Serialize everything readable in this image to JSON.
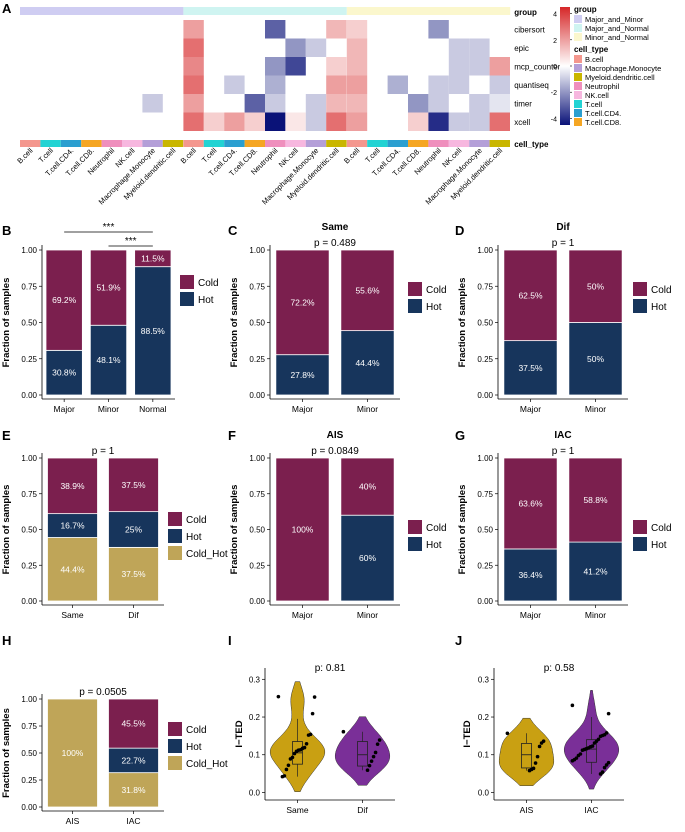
{
  "colors": {
    "cold": "#7b1f4e",
    "hot": "#17355c",
    "cold_hot": "#bfa558",
    "violin_gold": "#c9a012",
    "violin_purple": "#7a2f98",
    "group_major_minor": "#cfcdf2",
    "group_major_normal": "#cff4f1",
    "group_minor_normal": "#fbf7cd",
    "celltype_b": "#f4978e",
    "celltype_macro": "#b49fd8",
    "celltype_myeloid": "#c9b600",
    "celltype_neutro": "#ef8fbd",
    "celltype_nk": "#f7b7df",
    "celltype_t": "#22d3d3",
    "celltype_cd4": "#2b9fd0",
    "celltype_cd8": "#f5a623"
  },
  "chart_data": [
    {
      "panel": "A",
      "type": "heatmap",
      "rows": [
        "cibersort",
        "epic",
        "mcp_counter",
        "quantiseq",
        "timer",
        "xcell"
      ],
      "row_header": "group",
      "footer_label": "cell_type",
      "column_labels": [
        "B.cell",
        "T.cell",
        "T.cell.CD4.",
        "T.cell.CD8.",
        "Neutrophil",
        "NK.cell",
        "Macrophage.Monocyte",
        "Myeloid.dendritic.cell"
      ],
      "blocks": [
        {
          "group": "Major_and_Minor",
          "values": [
            [
              null,
              null,
              null,
              null,
              null,
              null,
              null,
              null
            ],
            [
              null,
              null,
              null,
              null,
              null,
              null,
              null,
              null
            ],
            [
              null,
              null,
              null,
              null,
              null,
              null,
              null,
              null
            ],
            [
              null,
              null,
              null,
              null,
              null,
              null,
              null,
              null
            ],
            [
              null,
              null,
              null,
              null,
              null,
              null,
              -1,
              null
            ],
            [
              null,
              null,
              null,
              null,
              null,
              null,
              null,
              null
            ]
          ]
        },
        {
          "group": "Major_and_Normal",
          "values": [
            [
              2,
              null,
              null,
              null,
              -3,
              null,
              null,
              1.5
            ],
            [
              3,
              null,
              null,
              null,
              null,
              -2,
              -1,
              null
            ],
            [
              2.5,
              null,
              null,
              null,
              -2,
              -3.5,
              null,
              1
            ],
            [
              3,
              null,
              -1,
              null,
              -1.5,
              null,
              null,
              2
            ],
            [
              2,
              null,
              null,
              -3,
              -1,
              null,
              -1,
              1.5
            ],
            [
              3,
              1,
              2,
              1,
              -4.5,
              0.5,
              -1,
              3
            ]
          ]
        },
        {
          "group": "Minor_and_Normal",
          "values": [
            [
              1,
              null,
              null,
              null,
              -2,
              null,
              null,
              null
            ],
            [
              1.5,
              null,
              null,
              null,
              null,
              -1,
              -1,
              null
            ],
            [
              1.5,
              null,
              null,
              null,
              null,
              -1,
              -1,
              2
            ],
            [
              2,
              null,
              -1.5,
              null,
              -1,
              -1,
              null,
              -1
            ],
            [
              1.5,
              null,
              null,
              -2,
              -1,
              null,
              -1,
              -0.5
            ],
            [
              2,
              null,
              null,
              1,
              -4,
              -1,
              -1,
              3
            ]
          ]
        }
      ],
      "colorbar": {
        "ticks": [
          4,
          2,
          0,
          -2,
          -4
        ],
        "range": [
          -4.5,
          4.5
        ]
      },
      "legend": {
        "group_title": "group",
        "groups": [
          "Major_and_Minor",
          "Major_and_Normal",
          "Minor_and_Normal"
        ],
        "celltype_title": "cell_type",
        "cell_types": [
          "B.cell",
          "Macrophage.Monocyte",
          "Myeloid.dendritic.cell",
          "Neutrophil",
          "NK.cell",
          "T.cell",
          "T.cell.CD4.",
          "T.cell.CD8."
        ]
      }
    },
    {
      "panel": "B",
      "type": "bar",
      "title": "",
      "ptext": "",
      "ylabel": "Fraction of samples",
      "ylim": [
        0,
        1
      ],
      "yticks": [
        "0.00",
        "0.25",
        "0.50",
        "0.75",
        "1.00"
      ],
      "categories": [
        "Major",
        "Minor",
        "Normal"
      ],
      "series": [
        {
          "name": "Hot",
          "values": [
            0.308,
            0.481,
            0.885
          ],
          "labels": [
            "30.8%",
            "48.1%",
            "88.5%"
          ]
        },
        {
          "name": "Cold",
          "values": [
            0.692,
            0.519,
            0.115
          ],
          "labels": [
            "69.2%",
            "51.9%",
            "11.5%"
          ]
        }
      ],
      "legend": [
        "Cold",
        "Hot"
      ],
      "significance": [
        {
          "from": 0,
          "to": 2,
          "label": "***"
        },
        {
          "from": 1,
          "to": 2,
          "label": "***"
        }
      ]
    },
    {
      "panel": "C",
      "type": "bar",
      "title": "Same",
      "ptext": "p = 0.489",
      "ylabel": "Fraction of samples",
      "ylim": [
        0,
        1
      ],
      "yticks": [
        "0.00",
        "0.25",
        "0.50",
        "0.75",
        "1.00"
      ],
      "categories": [
        "Major",
        "Minor"
      ],
      "series": [
        {
          "name": "Hot",
          "values": [
            0.278,
            0.444
          ],
          "labels": [
            "27.8%",
            "44.4%"
          ]
        },
        {
          "name": "Cold",
          "values": [
            0.722,
            0.556
          ],
          "labels": [
            "72.2%",
            "55.6%"
          ]
        }
      ],
      "legend": [
        "Cold",
        "Hot"
      ]
    },
    {
      "panel": "D",
      "type": "bar",
      "title": "Dif",
      "ptext": "p = 1",
      "ylabel": "Fraction of samples",
      "ylim": [
        0,
        1
      ],
      "yticks": [
        "0.00",
        "0.25",
        "0.50",
        "0.75",
        "1.00"
      ],
      "categories": [
        "Major",
        "Minor"
      ],
      "series": [
        {
          "name": "Hot",
          "values": [
            0.375,
            0.5
          ],
          "labels": [
            "37.5%",
            "50%"
          ]
        },
        {
          "name": "Cold",
          "values": [
            0.625,
            0.5
          ],
          "labels": [
            "62.5%",
            "50%"
          ]
        }
      ],
      "legend": [
        "Cold",
        "Hot"
      ]
    },
    {
      "panel": "E",
      "type": "bar",
      "title": "",
      "ptext": "p = 1",
      "ylabel": "Fraction of samples",
      "ylim": [
        0,
        1
      ],
      "yticks": [
        "0.00",
        "0.25",
        "0.50",
        "0.75",
        "1.00"
      ],
      "categories": [
        "Same",
        "Dif"
      ],
      "series": [
        {
          "name": "Cold_Hot",
          "values": [
            0.444,
            0.375
          ],
          "labels": [
            "44.4%",
            "37.5%"
          ]
        },
        {
          "name": "Hot",
          "values": [
            0.167,
            0.25
          ],
          "labels": [
            "16.7%",
            "25%"
          ]
        },
        {
          "name": "Cold",
          "values": [
            0.389,
            0.375
          ],
          "labels": [
            "38.9%",
            "37.5%"
          ]
        }
      ],
      "legend": [
        "Cold",
        "Hot",
        "Cold_Hot"
      ]
    },
    {
      "panel": "F",
      "type": "bar",
      "title": "AIS",
      "ptext": "p = 0.0849",
      "ylabel": "Fraction of samples",
      "ylim": [
        0,
        1
      ],
      "yticks": [
        "0.00",
        "0.25",
        "0.50",
        "0.75",
        "1.00"
      ],
      "categories": [
        "Major",
        "Minor"
      ],
      "series": [
        {
          "name": "Hot",
          "values": [
            0,
            0.6
          ],
          "labels": [
            "",
            "60%"
          ]
        },
        {
          "name": "Cold",
          "values": [
            1,
            0.4
          ],
          "labels": [
            "100%",
            "40%"
          ]
        }
      ],
      "legend": [
        "Cold",
        "Hot"
      ]
    },
    {
      "panel": "G",
      "type": "bar",
      "title": "IAC",
      "ptext": "p = 1",
      "ylabel": "Fraction of samples",
      "ylim": [
        0,
        1
      ],
      "yticks": [
        "0.00",
        "0.25",
        "0.50",
        "0.75",
        "1.00"
      ],
      "categories": [
        "Major",
        "Minor"
      ],
      "series": [
        {
          "name": "Hot",
          "values": [
            0.364,
            0.412
          ],
          "labels": [
            "36.4%",
            "41.2%"
          ]
        },
        {
          "name": "Cold",
          "values": [
            0.636,
            0.588
          ],
          "labels": [
            "63.6%",
            "58.8%"
          ]
        }
      ],
      "legend": [
        "Cold",
        "Hot"
      ]
    },
    {
      "panel": "H",
      "type": "bar",
      "title": "",
      "ptext": "p = 0.0505",
      "ylabel": "Fraction of samples",
      "ylim": [
        0,
        1
      ],
      "yticks": [
        "0.00",
        "0.25",
        "0.50",
        "0.75",
        "1.00"
      ],
      "categories": [
        "AIS",
        "IAC"
      ],
      "series": [
        {
          "name": "Cold_Hot",
          "values": [
            1,
            0.318
          ],
          "labels": [
            "100%",
            "31.8%"
          ]
        },
        {
          "name": "Hot",
          "values": [
            0,
            0.227
          ],
          "labels": [
            "",
            "22.7%"
          ]
        },
        {
          "name": "Cold",
          "values": [
            0,
            0.455
          ],
          "labels": [
            "",
            "45.5%"
          ]
        }
      ],
      "legend": [
        "Cold",
        "Hot",
        "Cold_Hot"
      ]
    },
    {
      "panel": "I",
      "type": "scatter",
      "subtype": "violin",
      "ptext": "p: 0.81",
      "ylabel": "I−TED",
      "ylim": [
        -0.02,
        0.33
      ],
      "yticks": [
        "0.0",
        "0.1",
        "0.2",
        "0.3"
      ],
      "categories": [
        "Same",
        "Dif"
      ],
      "groups": [
        {
          "name": "Same",
          "points": [
            0.254,
            0.253,
            0.209,
            0.154,
            0.152,
            0.129,
            0.119,
            0.117,
            0.113,
            0.112,
            0.109,
            0.103,
            0.093,
            0.089,
            0.072,
            0.061,
            0.044,
            0.042
          ],
          "box": [
            0.075,
            0.105,
            0.135
          ]
        },
        {
          "name": "Dif",
          "points": [
            0.161,
            0.139,
            0.128,
            0.106,
            0.095,
            0.083,
            0.071,
            0.059
          ],
          "box": [
            0.07,
            0.1,
            0.135
          ]
        }
      ]
    },
    {
      "panel": "J",
      "type": "scatter",
      "subtype": "violin",
      "ptext": "p: 0.58",
      "ylabel": "I−TED",
      "ylim": [
        -0.02,
        0.33
      ],
      "yticks": [
        "0.0",
        "0.1",
        "0.2",
        "0.3"
      ],
      "categories": [
        "AIS",
        "IAC"
      ],
      "groups": [
        {
          "name": "AIS",
          "points": [
            0.157,
            0.136,
            0.131,
            0.122,
            0.095,
            0.078,
            0.064,
            0.061,
            0.058
          ],
          "box": [
            0.065,
            0.1,
            0.13
          ]
        },
        {
          "name": "IAC",
          "points": [
            0.231,
            0.209,
            0.158,
            0.153,
            0.151,
            0.149,
            0.141,
            0.136,
            0.131,
            0.123,
            0.121,
            0.118,
            0.116,
            0.114,
            0.112,
            0.102,
            0.098,
            0.091,
            0.087,
            0.084,
            0.079,
            0.073,
            0.066,
            0.054,
            0.049
          ],
          "box": [
            0.08,
            0.115,
            0.14
          ]
        }
      ]
    }
  ]
}
